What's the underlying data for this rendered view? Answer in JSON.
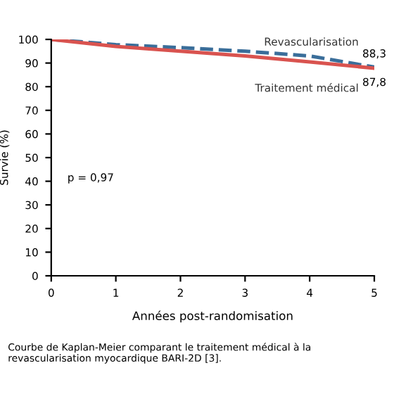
{
  "chart_data": {
    "type": "line",
    "xlabel": "Années post-randomisation",
    "ylabel": "Survie (%)",
    "x": [
      0,
      1,
      2,
      3,
      4,
      5
    ],
    "series": [
      {
        "name": "Revascularisation",
        "color": "#3a6e9a",
        "line_style": "dashed",
        "values": [
          100,
          97.8,
          96.5,
          95,
          93,
          88.3
        ],
        "value_labels": [
          null,
          null,
          null,
          null,
          null,
          "88,3"
        ]
      },
      {
        "name": "Traitement médical",
        "color": "#d9534f",
        "line_style": "solid",
        "values": [
          100,
          97,
          95,
          93,
          90.5,
          87.8
        ],
        "value_labels": [
          null,
          null,
          null,
          null,
          null,
          "87,8"
        ]
      }
    ],
    "xlim": [
      0,
      5
    ],
    "xticks": [
      0,
      1,
      2,
      3,
      4,
      5
    ],
    "ylim": [
      0,
      100
    ],
    "yticks": [
      0,
      10,
      20,
      30,
      40,
      50,
      60,
      70,
      80,
      90,
      100
    ],
    "grid": false,
    "legend": false,
    "marker": "none",
    "annotations": [
      {
        "text": "p = 0,97"
      },
      "Courbe de Kaplan-Meier comparant le traitement médical à la revascularisation myocardique BARI-2D [3]."
    ]
  }
}
